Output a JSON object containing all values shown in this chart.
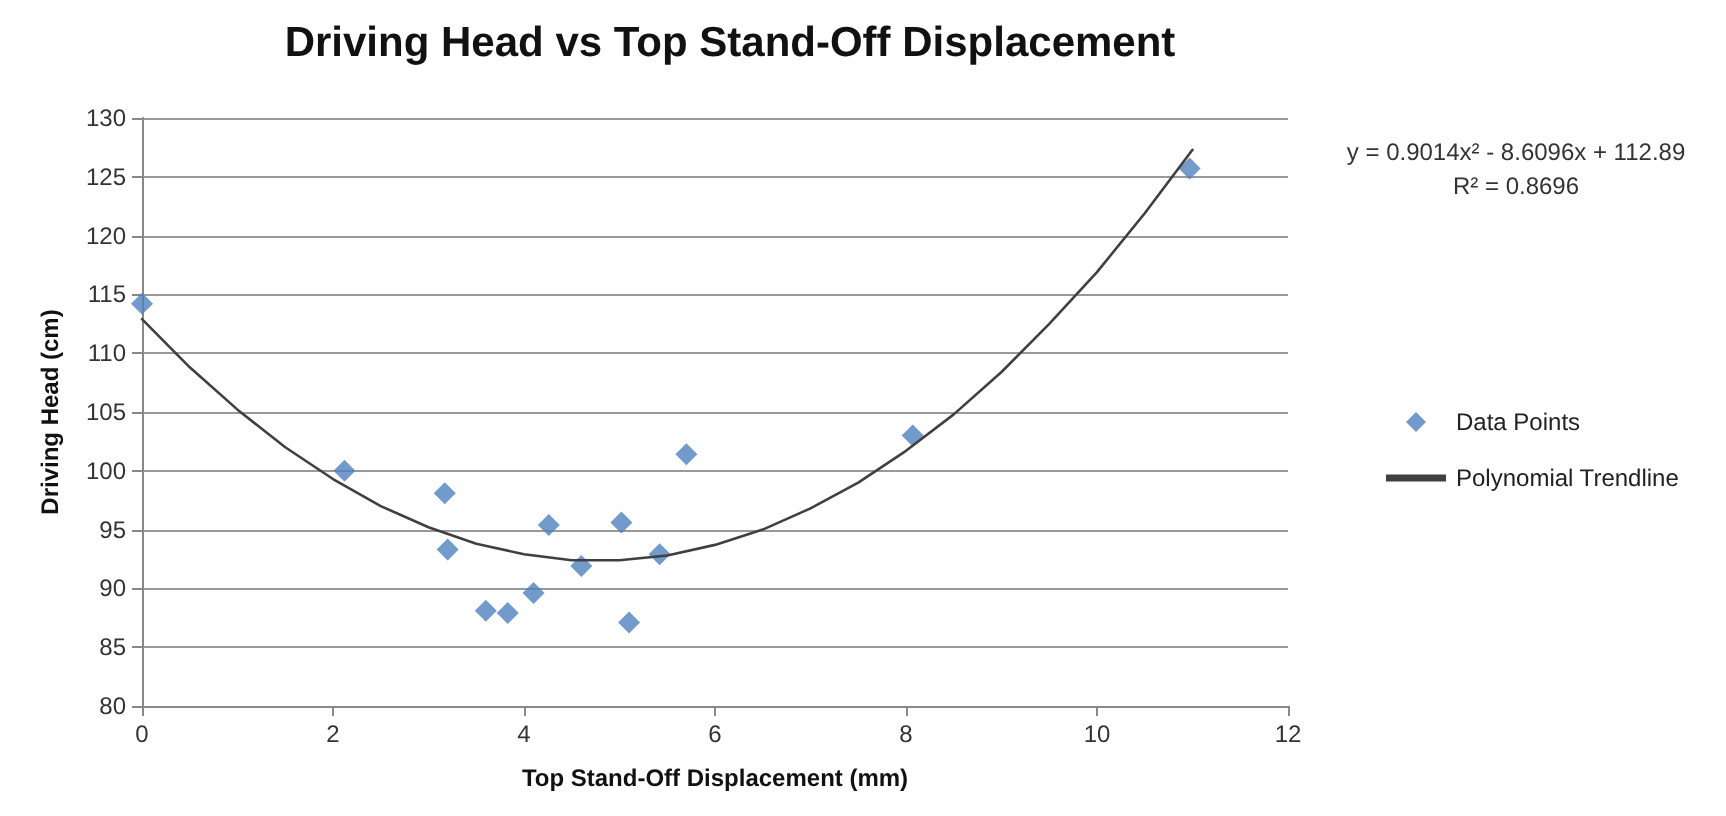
{
  "chart_data": {
    "type": "scatter",
    "title": "Driving Head vs Top Stand-Off Displacement",
    "xlabel": "Top Stand-Off Displacement (mm)",
    "ylabel": "Driving Head (cm)",
    "annotations": [
      "y = 0.9014x² - 8.6096x + 112.89",
      "R² = 0.8696"
    ],
    "series": [
      {
        "name": "Data Points",
        "color": "#4f81bd",
        "marker": "diamond",
        "x": [
          0,
          2.12,
          3.17,
          3.2,
          3.6,
          3.83,
          4.1,
          4.26,
          4.6,
          5.02,
          5.1,
          5.42,
          5.7,
          8.07,
          10.97
        ],
        "values": [
          114.2,
          100,
          98.1,
          93.3,
          88.1,
          87.9,
          89.6,
          95.4,
          91.9,
          95.6,
          87.1,
          92.9,
          101.4,
          103,
          125.7
        ]
      },
      {
        "name": "Polynomial Trendline",
        "type": "line",
        "color": "#404040",
        "marker": "none",
        "line_style": "solid",
        "x": [
          0,
          0.5,
          1,
          1.5,
          2,
          2.5,
          3,
          3.5,
          4,
          4.5,
          5,
          5.5,
          6,
          6.5,
          7,
          7.5,
          8,
          8.5,
          9,
          9.5,
          10,
          10.5,
          11
        ],
        "values": [
          112.9,
          108.8,
          105.2,
          102,
          99.3,
          97,
          95.2,
          93.8,
          92.9,
          92.4,
          92.4,
          92.8,
          93.7,
          95,
          96.8,
          99,
          101.7,
          104.8,
          108.4,
          112.5,
          116.9,
          121.9,
          127.3
        ]
      }
    ],
    "xlim": [
      0,
      12
    ],
    "xticks": [
      0,
      2,
      4,
      6,
      8,
      10,
      12
    ],
    "ylim": [
      80,
      130
    ],
    "yticks": [
      80,
      85,
      90,
      95,
      100,
      105,
      110,
      115,
      120,
      125,
      130
    ],
    "grid": "y",
    "legend": "right"
  }
}
